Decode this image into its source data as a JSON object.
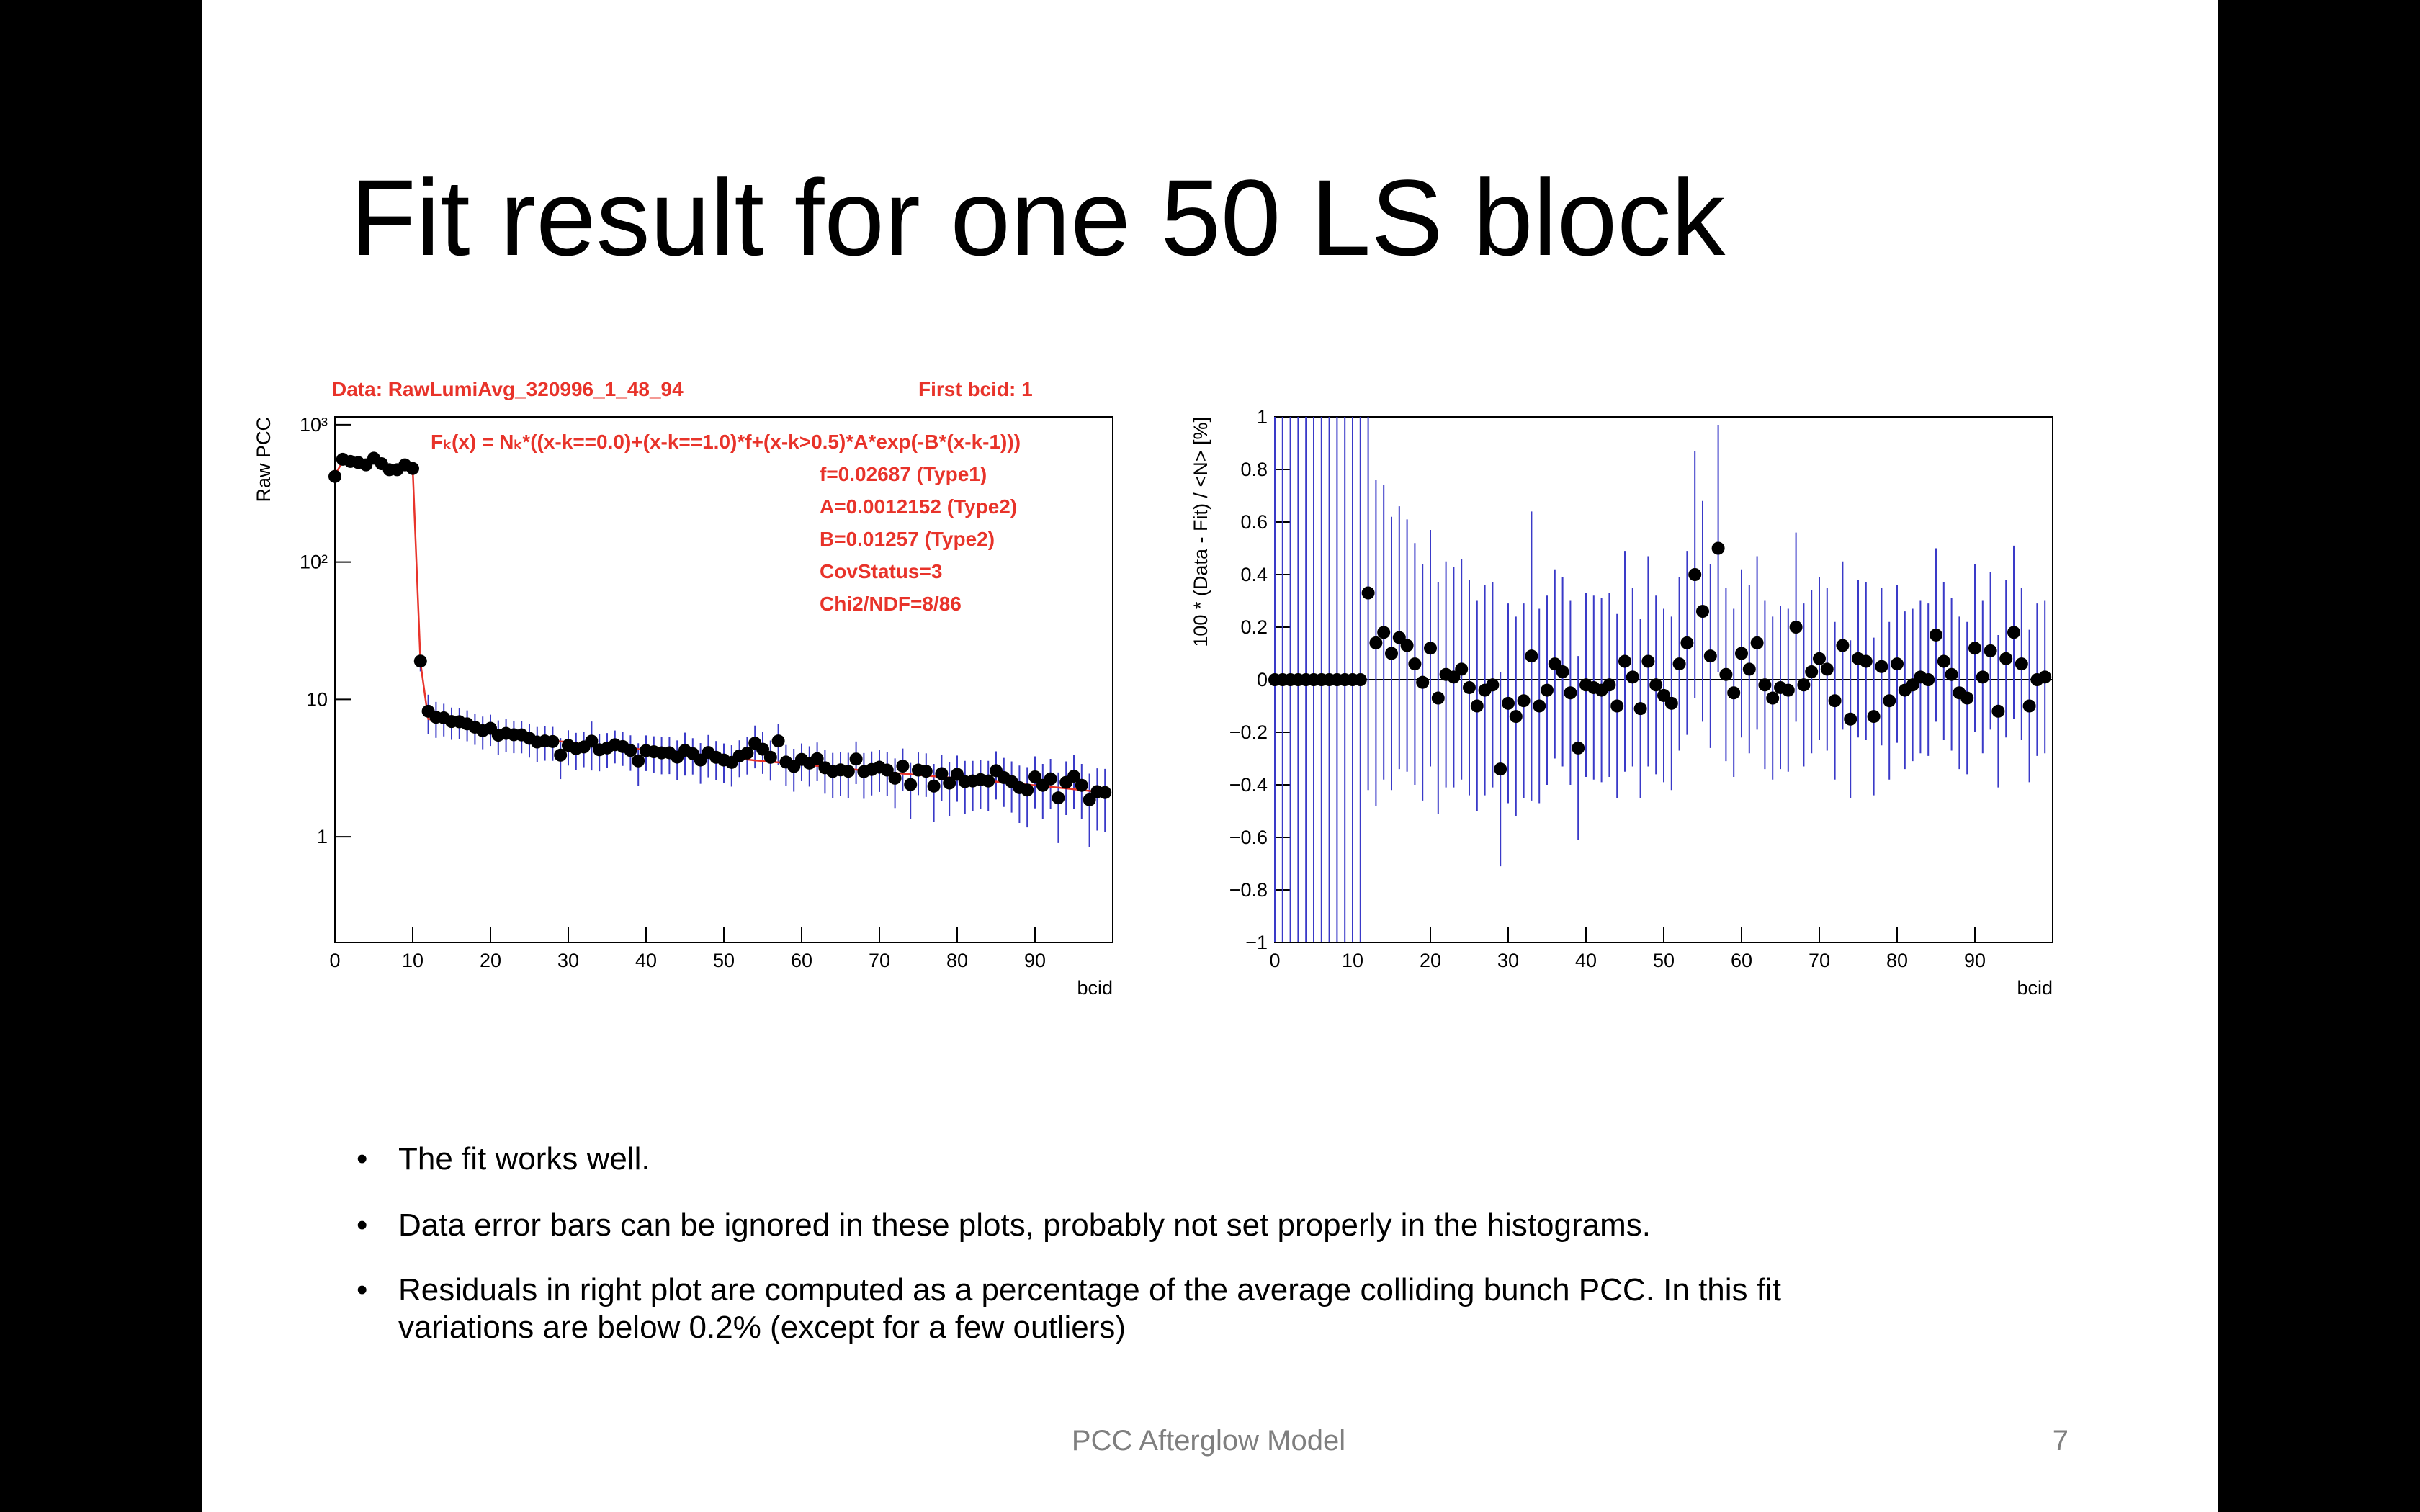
{
  "slide": {
    "title": "Fit result for one 50 LS block",
    "bullets": [
      [
        "The fit works well."
      ],
      [
        "Data error bars can be ignored in these plots, probably not set properly in the histograms."
      ],
      [
        "Residuals in right plot are computed as a percentage of the average colliding bunch PCC. In this fit",
        "variations are below 0.2% (except for a few outliers)"
      ]
    ],
    "footer": "PCC Afterglow Model",
    "page_number": "7"
  },
  "chart_data": [
    {
      "type": "scatter",
      "log_y": true,
      "header": "Data: RawLumiAvg_320996_1_48_94",
      "first_bcid": "First bcid: 1",
      "formula": "Fₖ(x) = Nₖ*((x-k==0.0)+(x-k==1.0)*f+(x-k>0.5)*A*exp(-B*(x-k-1)))",
      "fit_info": [
        "f=0.02687 (Type1)",
        "A=0.0012152 (Type2)",
        "B=0.01257 (Type2)",
        "CovStatus=3",
        "Chi2/NDF=8/86"
      ],
      "xlabel": "bcid",
      "ylabel": "Raw PCC",
      "xlim": [
        0,
        100
      ],
      "xticks": [
        0,
        10,
        20,
        30,
        40,
        50,
        60,
        70,
        80,
        90
      ],
      "ylim": [
        0.17,
        1140
      ],
      "yticks": [
        1,
        10,
        {
          "value": 100,
          "label": "10²"
        },
        {
          "value": 1000,
          "label": "10³"
        }
      ],
      "marker_color": "#000000",
      "error_color": "#3a3ac8",
      "fit_color": "#e8332a",
      "annotation_color": "#e8332a",
      "x": [
        0,
        1,
        2,
        3,
        4,
        5,
        6,
        7,
        8,
        9,
        10,
        11,
        12,
        13,
        14,
        15,
        16,
        17,
        18,
        19,
        20,
        21,
        22,
        23,
        24,
        25,
        26,
        27,
        28,
        29,
        30,
        31,
        32,
        33,
        34,
        35,
        36,
        37,
        38,
        39,
        40,
        41,
        42,
        43,
        44,
        45,
        46,
        47,
        48,
        49,
        50,
        51,
        52,
        53,
        54,
        55,
        56,
        57,
        58,
        59,
        60,
        61,
        62,
        63,
        64,
        65,
        66,
        67,
        68,
        69,
        70,
        71,
        72,
        73,
        74,
        75,
        76,
        77,
        78,
        79,
        80,
        81,
        82,
        83,
        84,
        85,
        86,
        87,
        88,
        89,
        90,
        91,
        92,
        93,
        94,
        95,
        96,
        97,
        98,
        99
      ],
      "values": [
        420,
        560,
        540,
        530,
        510,
        570,
        520,
        470,
        470,
        510,
        480,
        19,
        8.2,
        7.42,
        7.34,
        6.9,
        6.88,
        6.64,
        6.28,
        5.92,
        6.16,
        5.49,
        5.66,
        5.53,
        5.52,
        5.21,
        4.9,
        4.98,
        4.94,
        3.93,
        4.63,
        4.38,
        4.51,
        4.97,
        4.3,
        4.43,
        4.68,
        4.54,
        4.25,
        3.57,
        4.24,
        4.16,
        4.08,
        4.09,
        3.8,
        4.26,
        4.03,
        3.62,
        4.11,
        3.79,
        3.62,
        3.48,
        3.88,
        4.07,
        4.8,
        4.34,
        3.79,
        4.98,
        3.5,
        3.25,
        3.66,
        3.44,
        3.7,
        3.18,
        2.99,
        3.07,
        3.0,
        3.68,
        2.98,
        3.09,
        3.21,
        3.06,
        2.67,
        3.27,
        2.4,
        3.06,
        3.0,
        2.34,
        2.88,
        2.46,
        2.85,
        2.52,
        2.55,
        2.61,
        2.55,
        3.03,
        2.7,
        2.52,
        2.28,
        2.19,
        2.73,
        2.37,
        2.64,
        1.92,
        2.49,
        2.76,
        2.37,
        1.86,
        2.13,
        2.1
      ],
      "errors": [
        25,
        25,
        25,
        25,
        25,
        25,
        25,
        25,
        25,
        25,
        25,
        3,
        2.63,
        2.17,
        1.96,
        1.82,
        1.75,
        1.68,
        1.61,
        1.58,
        1.58,
        1.54,
        1.51,
        1.47,
        1.47,
        1.44,
        1.4,
        1.4,
        1.37,
        1.3,
        1.33,
        1.33,
        1.3,
        1.93,
        1.3,
        1.26,
        1.26,
        1.26,
        1.23,
        1.23,
        1.23,
        1.23,
        1.23,
        1.23,
        1.23,
        1.47,
        1.19,
        1.19,
        1.4,
        1.19,
        1.16,
        1.16,
        1.16,
        1.23,
        1.65,
        1.47,
        1.23,
        1.65,
        1.16,
        1.12,
        1.12,
        1.12,
        1.16,
        1.12,
        1.09,
        1.09,
        1.09,
        1.26,
        1.09,
        1.09,
        1.09,
        1.09,
        1.05,
        1.12,
        1.05,
        1.05,
        1.05,
        1.05,
        1.05,
        1.05,
        1.05,
        1.05,
        1.02,
        1.02,
        1.02,
        1.16,
        1.05,
        1.02,
        1.02,
        1.02,
        1.12,
        1.02,
        1.05,
        1.02,
        1.05,
        1.16,
        1.02,
        1.02,
        1.02,
        1.02
      ],
      "fit": [
        430,
        540,
        540,
        530,
        520,
        530,
        520,
        500,
        490,
        500,
        480,
        18.5,
        7.2,
        7.0,
        6.8,
        6.6,
        6.4,
        6.25,
        6.1,
        5.95,
        5.8,
        5.7,
        5.6,
        5.5,
        5.4,
        5.3,
        5.2,
        5.1,
        5.0,
        4.95,
        4.9,
        4.8,
        4.75,
        4.7,
        4.6,
        4.55,
        4.5,
        4.45,
        4.4,
        4.35,
        4.3,
        4.25,
        4.2,
        4.15,
        4.1,
        4.05,
        4.0,
        3.95,
        3.9,
        3.85,
        3.8,
        3.75,
        3.7,
        3.65,
        3.6,
        3.56,
        3.52,
        3.48,
        3.44,
        3.4,
        3.36,
        3.32,
        3.28,
        3.24,
        3.2,
        3.16,
        3.12,
        3.08,
        3.04,
        3.0,
        2.97,
        2.94,
        2.91,
        2.88,
        2.85,
        2.82,
        2.79,
        2.76,
        2.73,
        2.7,
        2.67,
        2.64,
        2.61,
        2.58,
        2.55,
        2.52,
        2.49,
        2.46,
        2.43,
        2.4,
        2.37,
        2.34,
        2.31,
        2.28,
        2.25,
        2.22,
        2.19,
        2.16,
        2.13,
        2.1
      ]
    },
    {
      "type": "scatter",
      "log_y": false,
      "zero_line": true,
      "xlabel": "bcid",
      "ylabel": "100 * (Data - Fit) / <N>  [%]",
      "xlim": [
        0,
        100
      ],
      "xticks": [
        0,
        10,
        20,
        30,
        40,
        50,
        60,
        70,
        80,
        90
      ],
      "ylim": [
        -1,
        1
      ],
      "yticks": [
        {
          "value": -1,
          "label": "−1"
        },
        {
          "value": -0.8,
          "label": "−0.8"
        },
        {
          "value": -0.6,
          "label": "−0.6"
        },
        {
          "value": -0.4,
          "label": "−0.4"
        },
        {
          "value": -0.2,
          "label": "−0.2"
        },
        0,
        0.2,
        0.4,
        0.6,
        0.8,
        1
      ],
      "marker_color": "#000000",
      "error_color": "#3a3ac8",
      "x": [
        0,
        1,
        2,
        3,
        4,
        5,
        6,
        7,
        8,
        9,
        10,
        11,
        12,
        13,
        14,
        15,
        16,
        17,
        18,
        19,
        20,
        21,
        22,
        23,
        24,
        25,
        26,
        27,
        28,
        29,
        30,
        31,
        32,
        33,
        34,
        35,
        36,
        37,
        38,
        39,
        40,
        41,
        42,
        43,
        44,
        45,
        46,
        47,
        48,
        49,
        50,
        51,
        52,
        53,
        54,
        55,
        56,
        57,
        58,
        59,
        60,
        61,
        62,
        63,
        64,
        65,
        66,
        67,
        68,
        69,
        70,
        71,
        72,
        73,
        74,
        75,
        76,
        77,
        78,
        79,
        80,
        81,
        82,
        83,
        84,
        85,
        86,
        87,
        88,
        89,
        90,
        91,
        92,
        93,
        94,
        95,
        96,
        97,
        98,
        99
      ],
      "values": [
        0,
        0,
        0,
        0,
        0,
        0,
        0,
        0,
        0,
        0,
        0,
        0,
        0.33,
        0.14,
        0.18,
        0.1,
        0.16,
        0.13,
        0.06,
        -0.01,
        0.12,
        -0.07,
        0.02,
        0.01,
        0.04,
        -0.03,
        -0.1,
        -0.04,
        -0.02,
        -0.34,
        -0.09,
        -0.14,
        -0.08,
        0.09,
        -0.1,
        -0.04,
        0.06,
        0.03,
        -0.05,
        -0.26,
        -0.02,
        -0.03,
        -0.04,
        -0.02,
        -0.1,
        0.07,
        0.01,
        -0.11,
        0.07,
        -0.02,
        -0.06,
        -0.09,
        0.06,
        0.14,
        0.4,
        0.26,
        0.09,
        0.5,
        0.02,
        -0.05,
        0.1,
        0.04,
        0.14,
        -0.02,
        -0.07,
        -0.03,
        -0.04,
        0.2,
        -0.02,
        0.03,
        0.08,
        0.04,
        -0.08,
        0.13,
        -0.15,
        0.08,
        0.07,
        -0.14,
        0.05,
        -0.08,
        0.06,
        -0.04,
        -0.02,
        0.01,
        0,
        0.17,
        0.07,
        0.02,
        -0.05,
        -0.07,
        0.12,
        0.01,
        0.11,
        -0.12,
        0.08,
        0.18,
        0.06,
        -0.1,
        0,
        0.01
      ],
      "errors": [
        3,
        3,
        3,
        3,
        3,
        3,
        3,
        3,
        3,
        3,
        3,
        3,
        0.75,
        0.62,
        0.56,
        0.52,
        0.5,
        0.48,
        0.46,
        0.45,
        0.45,
        0.44,
        0.43,
        0.42,
        0.42,
        0.41,
        0.4,
        0.4,
        0.39,
        0.37,
        0.38,
        0.38,
        0.37,
        0.55,
        0.37,
        0.36,
        0.36,
        0.36,
        0.35,
        0.35,
        0.35,
        0.35,
        0.35,
        0.35,
        0.35,
        0.42,
        0.34,
        0.34,
        0.4,
        0.34,
        0.33,
        0.33,
        0.33,
        0.35,
        0.47,
        0.42,
        0.35,
        0.47,
        0.33,
        0.32,
        0.32,
        0.32,
        0.33,
        0.32,
        0.31,
        0.31,
        0.31,
        0.36,
        0.31,
        0.31,
        0.31,
        0.31,
        0.3,
        0.32,
        0.3,
        0.3,
        0.3,
        0.3,
        0.3,
        0.3,
        0.3,
        0.3,
        0.29,
        0.29,
        0.29,
        0.33,
        0.3,
        0.29,
        0.29,
        0.29,
        0.32,
        0.29,
        0.3,
        0.29,
        0.3,
        0.33,
        0.29,
        0.29,
        0.29,
        0.29
      ]
    }
  ]
}
